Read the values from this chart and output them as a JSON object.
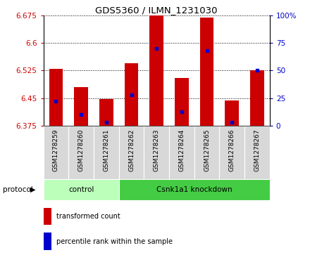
{
  "title": "GDS5360 / ILMN_1231030",
  "samples": [
    "GSM1278259",
    "GSM1278260",
    "GSM1278261",
    "GSM1278262",
    "GSM1278263",
    "GSM1278264",
    "GSM1278265",
    "GSM1278266",
    "GSM1278267"
  ],
  "transformed_counts": [
    6.53,
    6.48,
    6.447,
    6.545,
    6.675,
    6.505,
    6.668,
    6.443,
    6.525
  ],
  "percentile_ranks": [
    22,
    10,
    3,
    28,
    70,
    13,
    68,
    3,
    50
  ],
  "y_min": 6.375,
  "y_max": 6.675,
  "y_ticks": [
    6.375,
    6.45,
    6.525,
    6.6,
    6.675
  ],
  "y_tick_labels": [
    "6.375",
    "6.45",
    "6.525",
    "6.6",
    "6.675"
  ],
  "right_y_ticks": [
    0,
    25,
    50,
    75,
    100
  ],
  "right_y_tick_labels": [
    "0",
    "25",
    "50",
    "75",
    "100%"
  ],
  "bar_color": "#cc0000",
  "percentile_color": "#0000cc",
  "control_n": 3,
  "knockdown_n": 6,
  "control_label": "control",
  "knockdown_label": "Csnk1a1 knockdown",
  "protocol_label": "protocol",
  "legend_bar": "transformed count",
  "legend_pct": "percentile rank within the sample",
  "control_color": "#bbffbb",
  "knockdown_color": "#44cc44",
  "sample_box_color": "#d8d8d8",
  "tick_label_color_left": "#cc0000",
  "tick_label_color_right": "#0000cc",
  "bar_width": 0.55,
  "bg_color": "#ffffff"
}
